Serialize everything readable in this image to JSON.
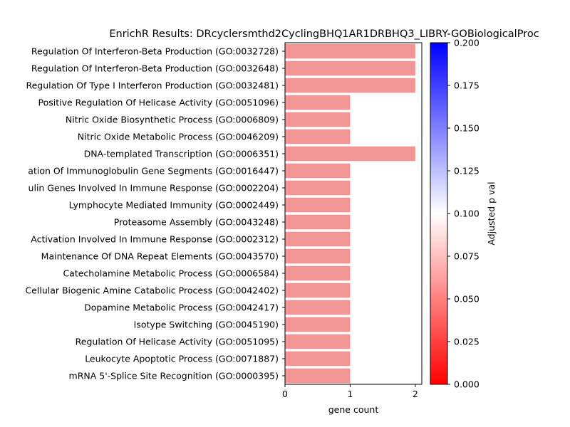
{
  "chart_data": {
    "type": "bar",
    "orientation": "horizontal",
    "title": "EnrichR Results: DRcyclersmthd2CyclingBHQ1AR1DRBHQ3_LIBRY-GOBiologicalProc",
    "xlabel": "gene count",
    "ylabel": "",
    "xlim": [
      0,
      2.1
    ],
    "xticks": [
      "0",
      "1",
      "2"
    ],
    "categories": [
      "Regulation Of Interferon-Beta Production (GO:0032728)",
      "Regulation Of Interferon-Beta Production (GO:0032648)",
      "Regulation Of Type I Interferon Production (GO:0032481)",
      "Positive Regulation Of Helicase Activity (GO:0051096)",
      "Nitric Oxide Biosynthetic Process (GO:0006809)",
      "Nitric Oxide Metabolic Process (GO:0046209)",
      "DNA-templated Transcription (GO:0006351)",
      "ation Of Immunoglobulin Gene Segments (GO:0016447)",
      "ulin Genes Involved In Immune Response (GO:0002204)",
      "Lymphocyte Mediated Immunity (GO:0002449)",
      "Proteasome Assembly (GO:0043248)",
      "Activation Involved In Immune Response (GO:0002312)",
      "Maintenance Of DNA Repeat Elements (GO:0043570)",
      "Catecholamine Metabolic Process (GO:0006584)",
      "Cellular Biogenic Amine Catabolic Process (GO:0042402)",
      "Dopamine Metabolic Process (GO:0042417)",
      "Isotype Switching (GO:0045190)",
      "Regulation Of Helicase Activity (GO:0051095)",
      "Leukocyte Apoptotic Process (GO:0071887)",
      "mRNA 5'-Splice Site Recognition (GO:0000395)"
    ],
    "values": [
      2,
      2,
      2,
      1,
      1,
      1,
      2,
      1,
      1,
      1,
      1,
      1,
      1,
      1,
      1,
      1,
      1,
      1,
      1,
      1
    ],
    "bar_color": "#f29595",
    "colorbar": {
      "label": "Adjusted p val",
      "range": [
        0,
        0.2
      ],
      "ticks": [
        "0.000",
        "0.025",
        "0.050",
        "0.075",
        "0.100",
        "0.125",
        "0.150",
        "0.175",
        "0.200"
      ],
      "colors": [
        "#ff0000",
        "#ffffff",
        "#0000ff"
      ]
    },
    "grid": false,
    "legend": "none"
  }
}
